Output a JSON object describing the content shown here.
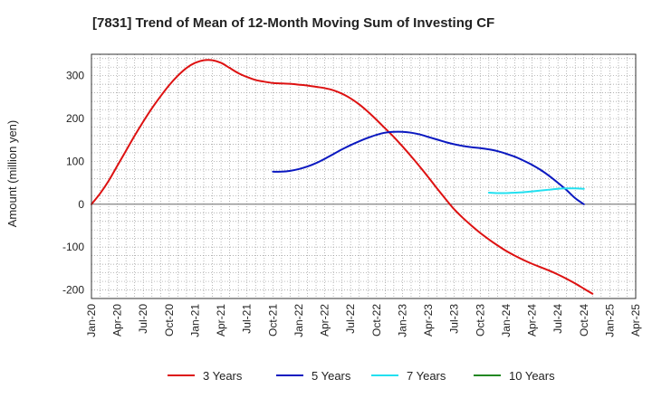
{
  "chart_data": {
    "type": "line",
    "title": "[7831]  Trend of Mean of 12-Month Moving Sum of Investing CF",
    "xlabel": "",
    "ylabel": "Amount (million yen)",
    "ylim": [
      -220,
      350
    ],
    "yticks": [
      -200,
      -100,
      0,
      100,
      200,
      300
    ],
    "x_ticks": [
      "Jan-20",
      "Apr-20",
      "Jul-20",
      "Oct-20",
      "Jan-21",
      "Apr-21",
      "Jul-21",
      "Oct-21",
      "Jan-22",
      "Apr-22",
      "Jul-22",
      "Oct-22",
      "Jan-23",
      "Apr-23",
      "Jul-23",
      "Oct-23",
      "Jan-24",
      "Apr-24",
      "Jul-24",
      "Oct-24",
      "Jan-25",
      "Apr-25"
    ],
    "x_range_months": [
      0,
      63
    ],
    "grid": true,
    "legend_position": "bottom",
    "series": [
      {
        "name": "3 Years",
        "color": "#dd1111",
        "points": [
          [
            0,
            0
          ],
          [
            1,
            25
          ],
          [
            2,
            55
          ],
          [
            3,
            90
          ],
          [
            4,
            125
          ],
          [
            5,
            160
          ],
          [
            6,
            193
          ],
          [
            7,
            224
          ],
          [
            8,
            252
          ],
          [
            9,
            278
          ],
          [
            10,
            300
          ],
          [
            11,
            318
          ],
          [
            12,
            330
          ],
          [
            13,
            336
          ],
          [
            14,
            336
          ],
          [
            15,
            330
          ],
          [
            16,
            318
          ],
          [
            17,
            306
          ],
          [
            18,
            297
          ],
          [
            19,
            290
          ],
          [
            20,
            286
          ],
          [
            21,
            283
          ],
          [
            22,
            282
          ],
          [
            23,
            281
          ],
          [
            24,
            279
          ],
          [
            25,
            277
          ],
          [
            26,
            274
          ],
          [
            27,
            271
          ],
          [
            28,
            266
          ],
          [
            29,
            258
          ],
          [
            30,
            247
          ],
          [
            31,
            233
          ],
          [
            32,
            216
          ],
          [
            33,
            197
          ],
          [
            34,
            177
          ],
          [
            35,
            157
          ],
          [
            36,
            135
          ],
          [
            37,
            112
          ],
          [
            38,
            88
          ],
          [
            39,
            63
          ],
          [
            40,
            37
          ],
          [
            41,
            12
          ],
          [
            42,
            -12
          ],
          [
            43,
            -32
          ],
          [
            44,
            -50
          ],
          [
            45,
            -67
          ],
          [
            46,
            -82
          ],
          [
            47,
            -96
          ],
          [
            48,
            -109
          ],
          [
            49,
            -120
          ],
          [
            50,
            -130
          ],
          [
            51,
            -139
          ],
          [
            52,
            -147
          ],
          [
            53,
            -155
          ],
          [
            54,
            -164
          ],
          [
            55,
            -174
          ],
          [
            56,
            -185
          ],
          [
            57,
            -197
          ],
          [
            58,
            -209
          ]
        ]
      },
      {
        "name": "5 Years",
        "color": "#0a18c0",
        "points": [
          [
            21,
            76
          ],
          [
            22,
            76
          ],
          [
            23,
            78
          ],
          [
            24,
            82
          ],
          [
            25,
            88
          ],
          [
            26,
            96
          ],
          [
            27,
            106
          ],
          [
            28,
            117
          ],
          [
            29,
            128
          ],
          [
            30,
            138
          ],
          [
            31,
            147
          ],
          [
            32,
            155
          ],
          [
            33,
            162
          ],
          [
            34,
            167
          ],
          [
            35,
            169
          ],
          [
            36,
            169
          ],
          [
            37,
            167
          ],
          [
            38,
            163
          ],
          [
            39,
            157
          ],
          [
            40,
            151
          ],
          [
            41,
            145
          ],
          [
            42,
            140
          ],
          [
            43,
            136
          ],
          [
            44,
            133
          ],
          [
            45,
            131
          ],
          [
            46,
            128
          ],
          [
            47,
            124
          ],
          [
            48,
            118
          ],
          [
            49,
            111
          ],
          [
            50,
            102
          ],
          [
            51,
            92
          ],
          [
            52,
            80
          ],
          [
            53,
            66
          ],
          [
            54,
            50
          ],
          [
            55,
            33
          ],
          [
            56,
            14
          ],
          [
            57,
            0
          ]
        ]
      },
      {
        "name": "7 Years",
        "color": "#22e0f0",
        "points": [
          [
            46,
            27
          ],
          [
            47,
            26
          ],
          [
            48,
            26
          ],
          [
            49,
            27
          ],
          [
            50,
            28
          ],
          [
            51,
            30
          ],
          [
            52,
            32
          ],
          [
            53,
            34
          ],
          [
            54,
            36
          ],
          [
            55,
            37
          ],
          [
            56,
            37
          ],
          [
            57,
            36
          ]
        ]
      },
      {
        "name": "10 Years",
        "color": "#228822",
        "points": []
      }
    ]
  }
}
